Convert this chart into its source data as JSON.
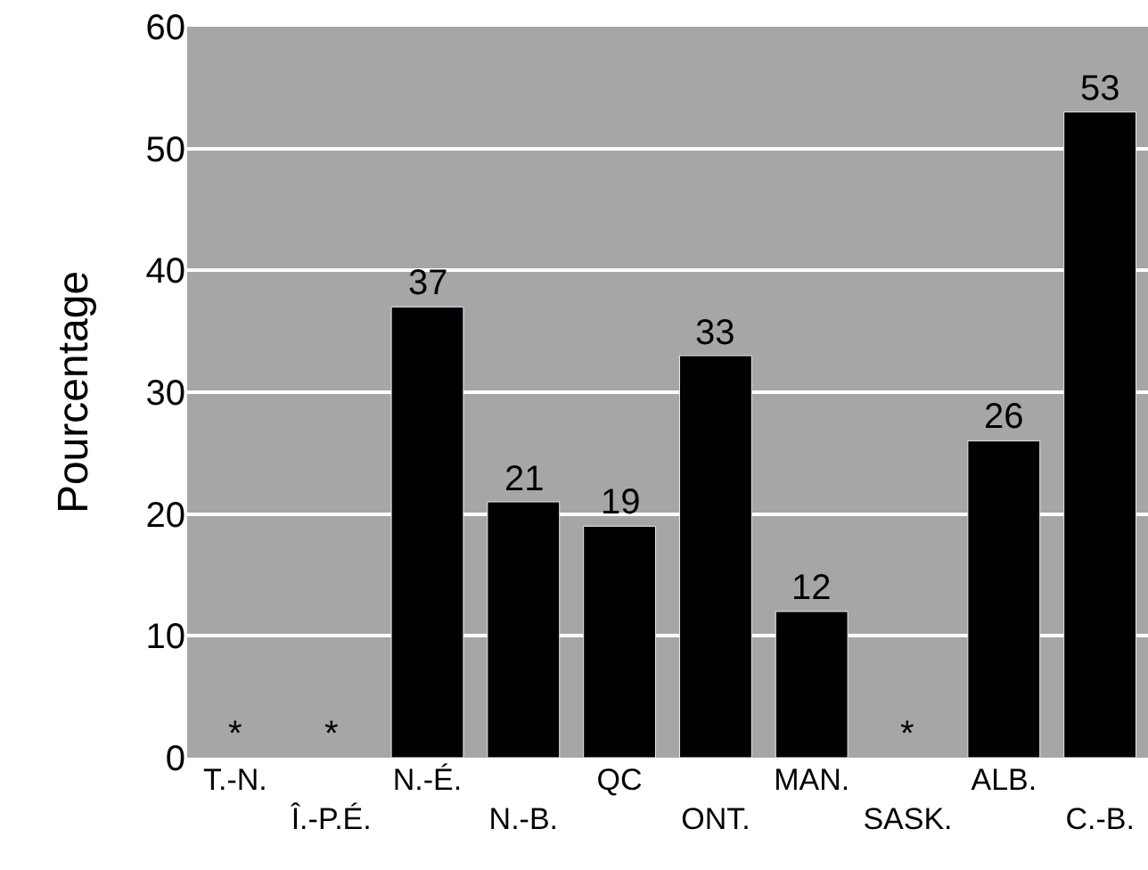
{
  "chart_data": {
    "type": "bar",
    "ylabel": "Pourcentage",
    "categories": [
      "T.-N.",
      "Î.-P.É.",
      "N.-É.",
      "N.-B.",
      "QC",
      "ONT.",
      "MAN.",
      "SASK.",
      "ALB.",
      "C.-B."
    ],
    "values": [
      null,
      null,
      37,
      21,
      19,
      33,
      12,
      null,
      26,
      53
    ],
    "value_labels": [
      "*",
      "*",
      "37",
      "21",
      "19",
      "33",
      "12",
      "*",
      "26",
      "53"
    ],
    "color": "#000000",
    "ylim": [
      0,
      60
    ],
    "yticks": [
      0,
      10,
      20,
      30,
      40,
      50,
      60
    ],
    "grid": "y",
    "legend": false
  }
}
